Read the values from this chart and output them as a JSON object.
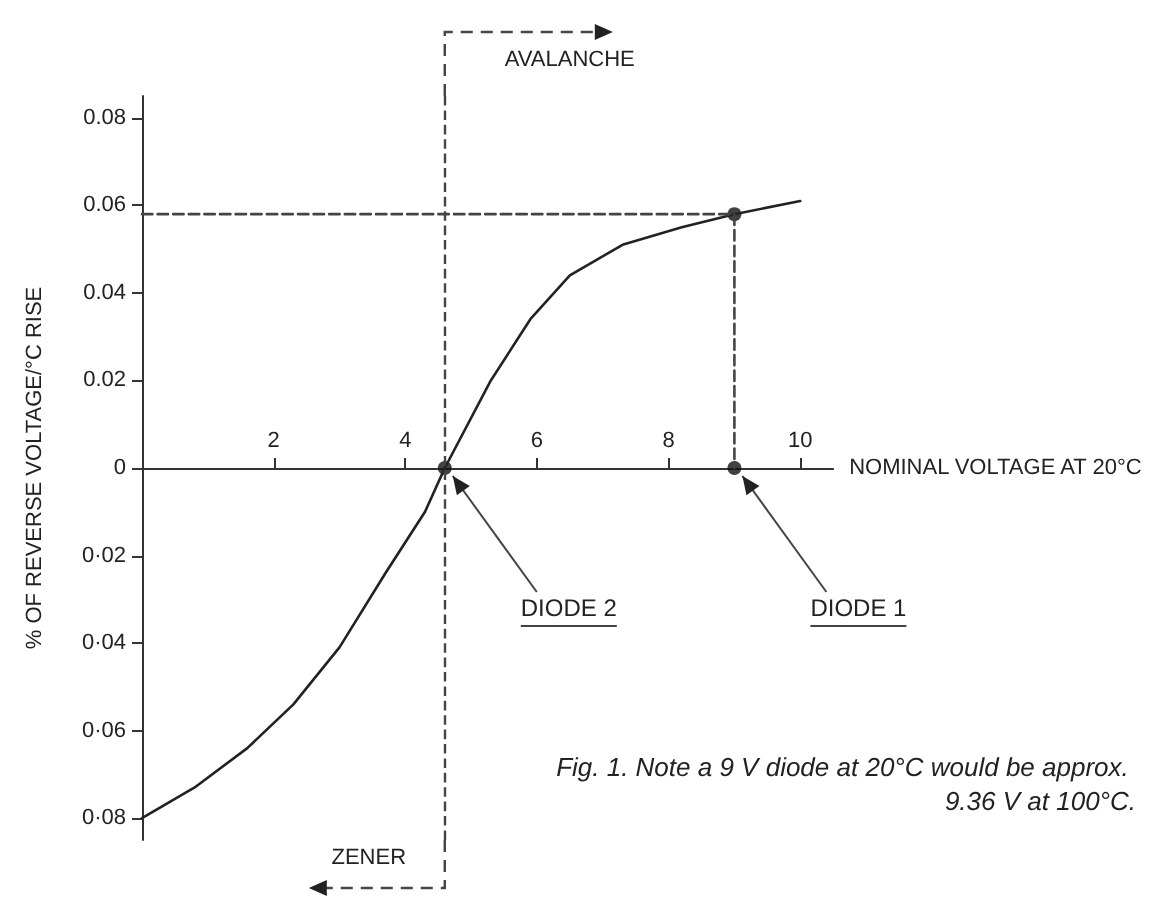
{
  "chart_data": {
    "type": "line",
    "xlabel": "NOMINAL VOLTAGE AT 20°C",
    "ylabel": "% OF REVERSE VOLTAGE/°C RISE",
    "xlim": [
      0,
      10.5
    ],
    "ylim": [
      -0.085,
      0.085
    ],
    "xticks": [
      2,
      4,
      6,
      8,
      10
    ],
    "yticks": [
      {
        "value": -0.08,
        "label": "0·08"
      },
      {
        "value": -0.06,
        "label": "0·06"
      },
      {
        "value": -0.04,
        "label": "0·04"
      },
      {
        "value": -0.02,
        "label": "0·02"
      },
      0,
      0.02,
      0.04,
      0.06,
      0.08
    ],
    "series": [
      {
        "color": "#222222",
        "marker": "none",
        "line_style": "solid",
        "x": [
          0,
          0.8,
          1.6,
          2.3,
          3.0,
          3.7,
          4.3,
          4.6,
          5.3,
          5.9,
          6.5,
          7.3,
          8.2,
          9.0,
          10.0
        ],
        "values": [
          -0.08,
          -0.073,
          -0.064,
          -0.054,
          -0.041,
          -0.024,
          -0.01,
          0,
          0.02,
          0.034,
          0.044,
          0.051,
          0.055,
          0.058,
          0.061
        ]
      },
      {
        "color": "#444444",
        "marker": "none",
        "line_style": "dashed",
        "x": [
          0,
          9,
          9
        ],
        "values": [
          0.058,
          0.058,
          0
        ]
      },
      {
        "type": "scatter",
        "color": "#111111",
        "marker": "circle",
        "x": [
          4.6,
          9,
          9
        ],
        "values": [
          0,
          0,
          0.058
        ]
      }
    ],
    "ref_lines": [
      {
        "axis": "x",
        "value": 4.6,
        "line_style": "dashed",
        "color": "#444444"
      }
    ],
    "annotations": [
      "AVALANCHE",
      "ZENER",
      {
        "text": "DIODE 2",
        "x": 4.6,
        "y": 0
      },
      {
        "text": "DIODE 1",
        "x": 9,
        "y": 0
      },
      "Fig. 1. Note a 9 V diode at 20°C would be approx. 9.36 V at 100°C."
    ],
    "grid": false
  }
}
